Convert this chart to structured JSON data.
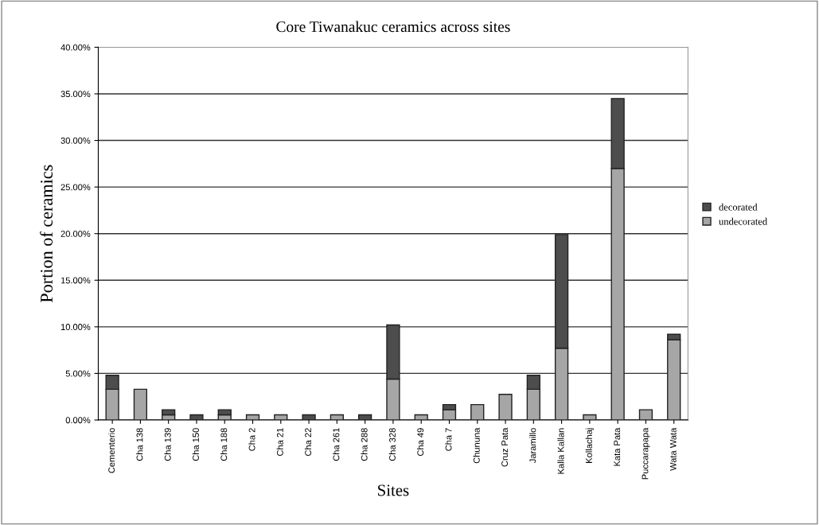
{
  "chart_data": {
    "type": "bar",
    "title": "Core Tiwanakuc ceramics across sites",
    "xlabel": "Sites",
    "ylabel": "Portion of ceramics",
    "categories": [
      "Cementerio",
      "Cha 138",
      "Cha 139",
      "Cha 150",
      "Cha 188",
      "Cha 2",
      "Cha 21",
      "Cha 22",
      "Cha 261",
      "Cha 288",
      "Cha 328",
      "Cha 49",
      "Cha 7",
      "Chununa",
      "Cruz Pata",
      "Jaramillo",
      "Kalla Kallan",
      "Kollachaj",
      "Kata Pata",
      "Puccarapapa",
      "Wata Wata"
    ],
    "stacked": true,
    "series": [
      {
        "name": "undecorated",
        "color": "#a6a6a6",
        "values": [
          3.3,
          3.3,
          0.55,
          0,
          0.55,
          0.55,
          0.55,
          0,
          0.55,
          0,
          4.4,
          0.55,
          1.1,
          1.65,
          2.75,
          3.3,
          7.7,
          0.55,
          27.0,
          1.1,
          8.6
        ]
      },
      {
        "name": "decorated",
        "color": "#4d4d4d",
        "values": [
          1.5,
          0,
          0.55,
          0.55,
          0.55,
          0,
          0,
          0.55,
          0,
          0.55,
          5.8,
          0,
          0.55,
          0,
          0,
          1.5,
          12.2,
          0,
          7.5,
          0,
          0.6
        ]
      }
    ],
    "ylim": [
      0,
      40
    ],
    "yticks": [
      {
        "value": 0,
        "label": "0.00%"
      },
      {
        "value": 5,
        "label": "5.00%"
      },
      {
        "value": 10,
        "label": "10.00%"
      },
      {
        "value": 15,
        "label": "15.00%"
      },
      {
        "value": 20,
        "label": "20.00%"
      },
      {
        "value": 25,
        "label": "25.00%"
      },
      {
        "value": 30,
        "label": "30.00%"
      },
      {
        "value": 35,
        "label": "35.00%"
      },
      {
        "value": 40,
        "label": "40.00%"
      }
    ],
    "grid": "y",
    "legend": "right"
  }
}
